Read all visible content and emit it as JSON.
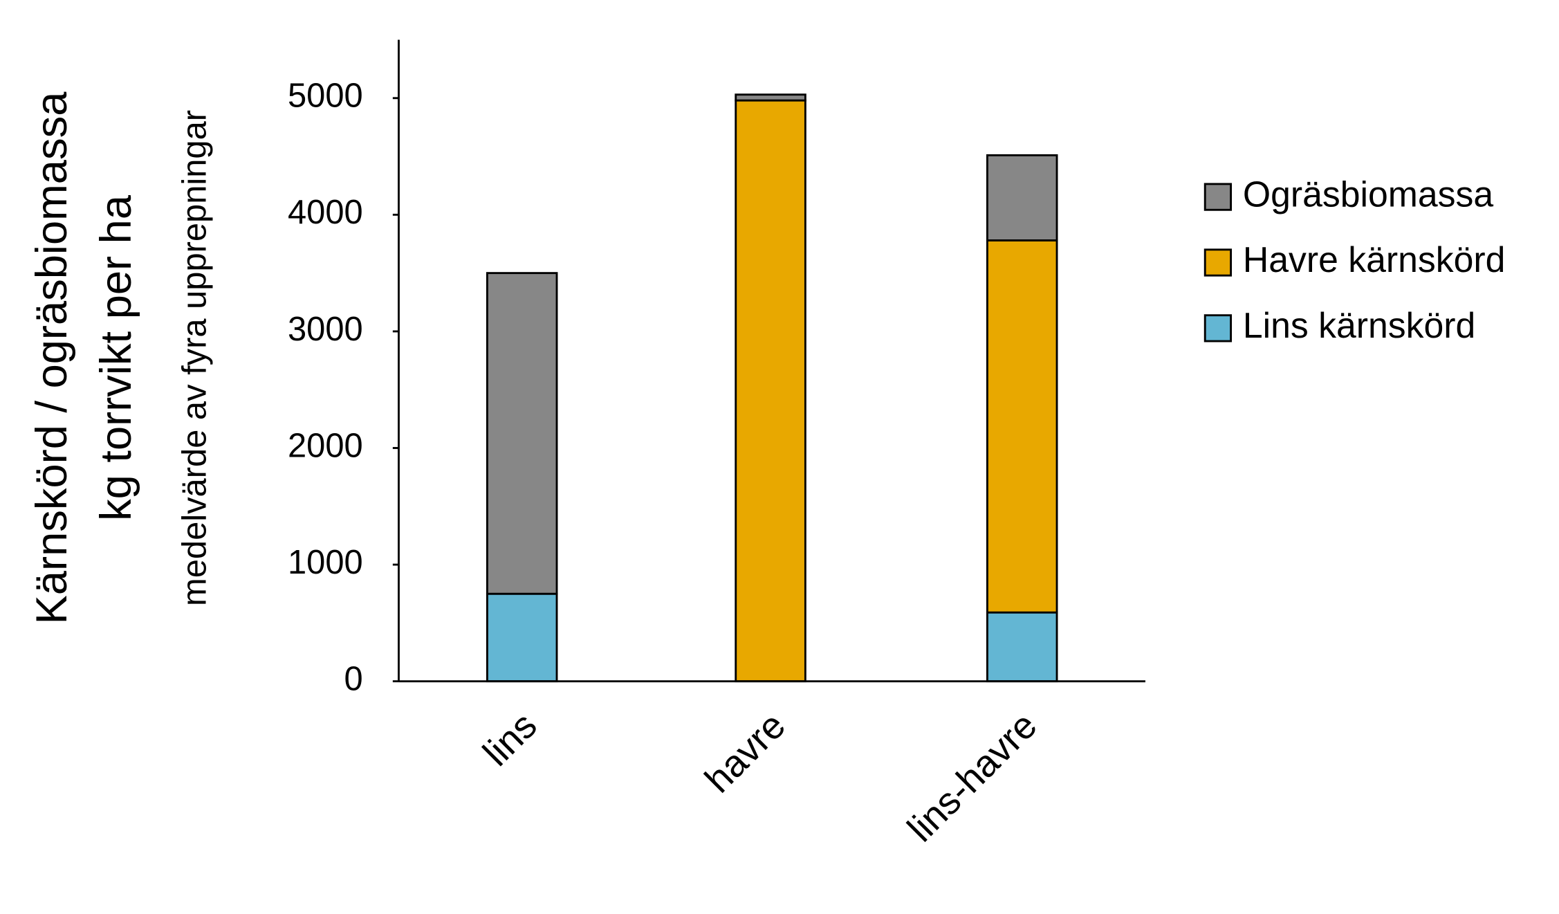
{
  "chart_data": {
    "type": "stacked_bar",
    "y_axis_labels": [
      "Kärnskörd / ogräsbiomassa",
      "kg torrvikt per ha",
      "medelvärde av fyra upprepningar"
    ],
    "categories": [
      "lins",
      "havre",
      "lins-havre"
    ],
    "series": [
      {
        "name": "Lins kärnskörd",
        "color": "#63b6d3",
        "values": [
          750,
          null,
          590
        ]
      },
      {
        "name": "Havre kärnskörd",
        "color": "#e8a800",
        "values": [
          null,
          4980,
          3190
        ]
      },
      {
        "name": "Ogräsbiomassa",
        "color": "#878787",
        "values": [
          2750,
          50,
          730
        ]
      }
    ],
    "ylim": [
      0,
      5500
    ],
    "yticks": [
      0,
      1000,
      2000,
      3000,
      4000,
      5000
    ],
    "grid": false,
    "legend": "right"
  }
}
